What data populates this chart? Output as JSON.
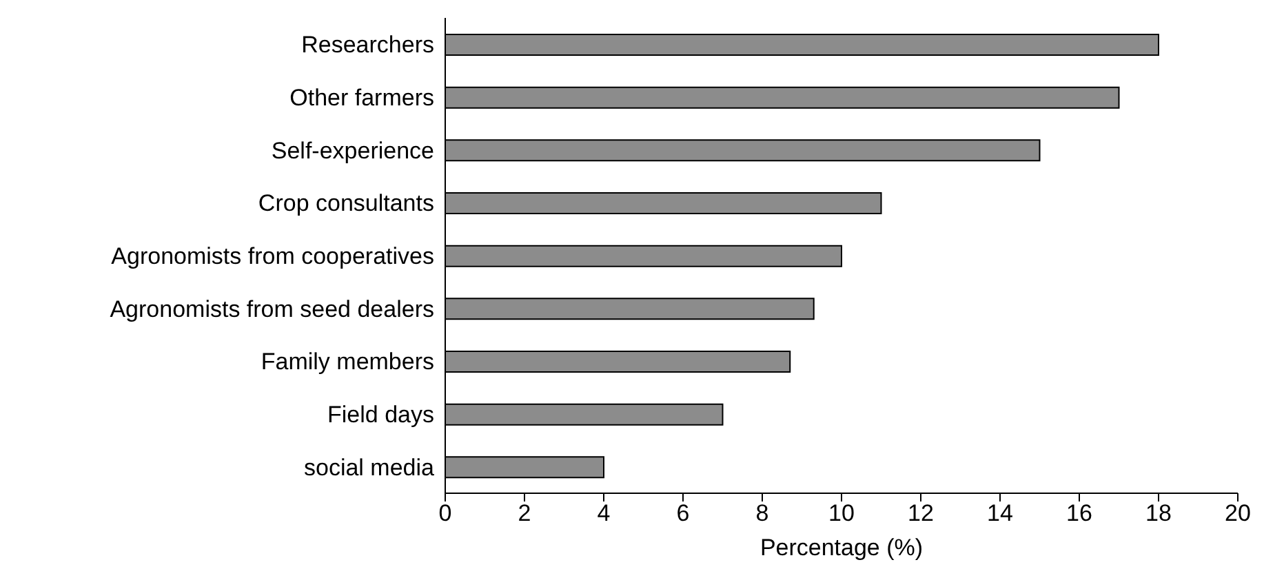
{
  "chart_data": {
    "type": "bar",
    "orientation": "horizontal",
    "xlabel": "Percentage (%)",
    "categories": [
      "Researchers",
      "Other farmers",
      "Self-experience",
      "Crop consultants",
      "Agronomists from cooperatives",
      "Agronomists from seed dealers",
      "Family members",
      "Field days",
      "social media"
    ],
    "values": [
      18,
      17,
      15,
      11,
      10,
      9.3,
      8.7,
      7,
      4
    ],
    "color": "#8c8c8c",
    "xlim": [
      0,
      20
    ],
    "xticks": [
      0,
      2,
      4,
      6,
      8,
      10,
      12,
      14,
      16,
      18,
      20
    ]
  }
}
